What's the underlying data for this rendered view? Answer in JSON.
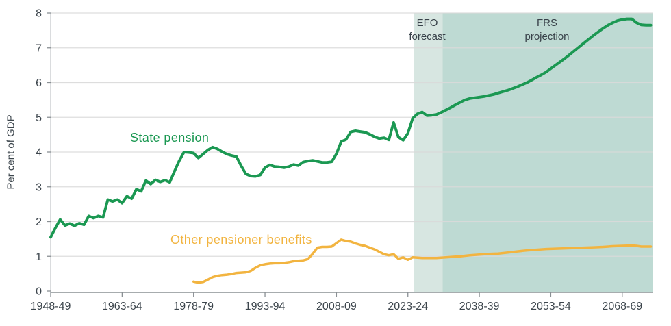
{
  "chart_data": {
    "type": "line",
    "title": "",
    "ylabel": "Per cent of GDP",
    "xlabel": "",
    "ylim": [
      0,
      8
    ],
    "y_ticks": [
      0,
      1,
      2,
      3,
      4,
      5,
      6,
      7,
      8
    ],
    "x_domain": [
      1948,
      2074.5
    ],
    "x_ticks": [
      {
        "year": 1948,
        "label": "1948-49"
      },
      {
        "year": 1963,
        "label": "1963-64"
      },
      {
        "year": 1978,
        "label": "1978-79"
      },
      {
        "year": 1993,
        "label": "1993-94"
      },
      {
        "year": 2008,
        "label": "2008-09"
      },
      {
        "year": 2023,
        "label": "2023-24"
      },
      {
        "year": 2038,
        "label": "2038-39"
      },
      {
        "year": 2053,
        "label": "2053-54"
      },
      {
        "year": 2068,
        "label": "2068-69"
      }
    ],
    "grid": true,
    "legend_position": "inline-labels",
    "bands": [
      {
        "name": "efo-forecast-band",
        "from": 2024.3,
        "to": 2030.3,
        "color": "#d7e6e1",
        "label_line1": "EFO",
        "label_line2": "forecast"
      },
      {
        "name": "frs-projection-band",
        "from": 2030.3,
        "to": 2074.5,
        "color": "#bedad3",
        "label_line1": "FRS",
        "label_line2": "projection"
      }
    ],
    "series": [
      {
        "name": "State pension",
        "color": "#1b9852",
        "points": [
          [
            1948,
            1.55
          ],
          [
            1949,
            1.82
          ],
          [
            1950,
            2.06
          ],
          [
            1951,
            1.89
          ],
          [
            1952,
            1.94
          ],
          [
            1953,
            1.88
          ],
          [
            1954,
            1.95
          ],
          [
            1955,
            1.91
          ],
          [
            1956,
            2.16
          ],
          [
            1957,
            2.1
          ],
          [
            1958,
            2.16
          ],
          [
            1959,
            2.12
          ],
          [
            1960,
            2.63
          ],
          [
            1961,
            2.58
          ],
          [
            1962,
            2.63
          ],
          [
            1963,
            2.53
          ],
          [
            1964,
            2.73
          ],
          [
            1965,
            2.66
          ],
          [
            1966,
            2.93
          ],
          [
            1967,
            2.87
          ],
          [
            1968,
            3.18
          ],
          [
            1969,
            3.08
          ],
          [
            1970,
            3.2
          ],
          [
            1971,
            3.14
          ],
          [
            1972,
            3.19
          ],
          [
            1973,
            3.13
          ],
          [
            1974,
            3.45
          ],
          [
            1975,
            3.75
          ],
          [
            1976,
            4.0
          ],
          [
            1977,
            3.99
          ],
          [
            1978,
            3.97
          ],
          [
            1979,
            3.83
          ],
          [
            1980,
            3.94
          ],
          [
            1981,
            4.06
          ],
          [
            1982,
            4.14
          ],
          [
            1983,
            4.09
          ],
          [
            1984,
            4.01
          ],
          [
            1985,
            3.94
          ],
          [
            1986,
            3.9
          ],
          [
            1987,
            3.87
          ],
          [
            1988,
            3.6
          ],
          [
            1989,
            3.37
          ],
          [
            1990,
            3.31
          ],
          [
            1991,
            3.3
          ],
          [
            1992,
            3.34
          ],
          [
            1993,
            3.55
          ],
          [
            1994,
            3.63
          ],
          [
            1995,
            3.58
          ],
          [
            1996,
            3.57
          ],
          [
            1997,
            3.55
          ],
          [
            1998,
            3.58
          ],
          [
            1999,
            3.64
          ],
          [
            2000,
            3.61
          ],
          [
            2001,
            3.71
          ],
          [
            2002,
            3.74
          ],
          [
            2003,
            3.76
          ],
          [
            2004,
            3.73
          ],
          [
            2005,
            3.7
          ],
          [
            2006,
            3.7
          ],
          [
            2007,
            3.72
          ],
          [
            2008,
            3.95
          ],
          [
            2009,
            4.3
          ],
          [
            2010,
            4.36
          ],
          [
            2011,
            4.58
          ],
          [
            2012,
            4.61
          ],
          [
            2013,
            4.59
          ],
          [
            2014,
            4.57
          ],
          [
            2015,
            4.51
          ],
          [
            2016,
            4.44
          ],
          [
            2017,
            4.39
          ],
          [
            2018,
            4.41
          ],
          [
            2019,
            4.35
          ],
          [
            2020,
            4.85
          ],
          [
            2021,
            4.43
          ],
          [
            2022,
            4.34
          ],
          [
            2023,
            4.54
          ],
          [
            2024,
            4.97
          ],
          [
            2025,
            5.1
          ],
          [
            2026,
            5.15
          ],
          [
            2027,
            5.05
          ],
          [
            2028,
            5.06
          ],
          [
            2029,
            5.08
          ],
          [
            2030,
            5.14
          ],
          [
            2031,
            5.21
          ],
          [
            2032,
            5.28
          ],
          [
            2033,
            5.36
          ],
          [
            2034,
            5.43
          ],
          [
            2035,
            5.5
          ],
          [
            2036,
            5.54
          ],
          [
            2037,
            5.56
          ],
          [
            2038,
            5.58
          ],
          [
            2039,
            5.6
          ],
          [
            2040,
            5.63
          ],
          [
            2041,
            5.66
          ],
          [
            2042,
            5.7
          ],
          [
            2043,
            5.74
          ],
          [
            2044,
            5.78
          ],
          [
            2045,
            5.83
          ],
          [
            2046,
            5.88
          ],
          [
            2047,
            5.94
          ],
          [
            2048,
            6.0
          ],
          [
            2049,
            6.07
          ],
          [
            2050,
            6.15
          ],
          [
            2051,
            6.22
          ],
          [
            2052,
            6.3
          ],
          [
            2053,
            6.4
          ],
          [
            2054,
            6.5
          ],
          [
            2055,
            6.6
          ],
          [
            2056,
            6.7
          ],
          [
            2057,
            6.81
          ],
          [
            2058,
            6.92
          ],
          [
            2059,
            7.03
          ],
          [
            2060,
            7.14
          ],
          [
            2061,
            7.25
          ],
          [
            2062,
            7.36
          ],
          [
            2063,
            7.46
          ],
          [
            2064,
            7.56
          ],
          [
            2065,
            7.65
          ],
          [
            2066,
            7.72
          ],
          [
            2067,
            7.78
          ],
          [
            2068,
            7.81
          ],
          [
            2069,
            7.83
          ],
          [
            2070,
            7.83
          ],
          [
            2071,
            7.72
          ],
          [
            2072,
            7.66
          ],
          [
            2073,
            7.65
          ],
          [
            2074,
            7.65
          ]
        ]
      },
      {
        "name": "Other pensioner benefits",
        "color": "#f2b440",
        "points": [
          [
            1978,
            0.27
          ],
          [
            1979,
            0.24
          ],
          [
            1980,
            0.26
          ],
          [
            1981,
            0.33
          ],
          [
            1982,
            0.4
          ],
          [
            1983,
            0.44
          ],
          [
            1984,
            0.46
          ],
          [
            1985,
            0.47
          ],
          [
            1986,
            0.49
          ],
          [
            1987,
            0.52
          ],
          [
            1988,
            0.53
          ],
          [
            1989,
            0.54
          ],
          [
            1990,
            0.58
          ],
          [
            1991,
            0.67
          ],
          [
            1992,
            0.74
          ],
          [
            1993,
            0.77
          ],
          [
            1994,
            0.79
          ],
          [
            1995,
            0.8
          ],
          [
            1996,
            0.8
          ],
          [
            1997,
            0.81
          ],
          [
            1998,
            0.83
          ],
          [
            1999,
            0.86
          ],
          [
            2000,
            0.87
          ],
          [
            2001,
            0.88
          ],
          [
            2002,
            0.92
          ],
          [
            2003,
            1.07
          ],
          [
            2004,
            1.25
          ],
          [
            2005,
            1.27
          ],
          [
            2006,
            1.27
          ],
          [
            2007,
            1.28
          ],
          [
            2008,
            1.38
          ],
          [
            2009,
            1.48
          ],
          [
            2010,
            1.44
          ],
          [
            2011,
            1.42
          ],
          [
            2012,
            1.37
          ],
          [
            2013,
            1.33
          ],
          [
            2014,
            1.3
          ],
          [
            2015,
            1.25
          ],
          [
            2016,
            1.2
          ],
          [
            2017,
            1.13
          ],
          [
            2018,
            1.06
          ],
          [
            2019,
            1.03
          ],
          [
            2020,
            1.06
          ],
          [
            2021,
            0.93
          ],
          [
            2022,
            0.97
          ],
          [
            2023,
            0.9
          ],
          [
            2024,
            0.97
          ],
          [
            2025,
            0.96
          ],
          [
            2026,
            0.95
          ],
          [
            2027,
            0.95
          ],
          [
            2028,
            0.95
          ],
          [
            2029,
            0.95
          ],
          [
            2030,
            0.96
          ],
          [
            2032,
            0.98
          ],
          [
            2034,
            1.0
          ],
          [
            2036,
            1.03
          ],
          [
            2038,
            1.05
          ],
          [
            2040,
            1.07
          ],
          [
            2042,
            1.08
          ],
          [
            2044,
            1.11
          ],
          [
            2046,
            1.14
          ],
          [
            2048,
            1.17
          ],
          [
            2050,
            1.19
          ],
          [
            2052,
            1.21
          ],
          [
            2054,
            1.22
          ],
          [
            2056,
            1.23
          ],
          [
            2058,
            1.24
          ],
          [
            2060,
            1.25
          ],
          [
            2062,
            1.26
          ],
          [
            2064,
            1.27
          ],
          [
            2066,
            1.29
          ],
          [
            2068,
            1.3
          ],
          [
            2070,
            1.31
          ],
          [
            2071,
            1.3
          ],
          [
            2072,
            1.28
          ],
          [
            2074,
            1.28
          ]
        ]
      }
    ],
    "colors": {
      "grid": "#d9d9d9",
      "axis": "#8a9094",
      "tick_text": "#3d464d"
    }
  },
  "labels": {
    "y_axis_title": "Per cent of GDP",
    "state_pension": "State pension",
    "other_benefits": "Other pensioner benefits",
    "efo_line1": "EFO",
    "efo_line2": "forecast",
    "frs_line1": "FRS",
    "frs_line2": "projection"
  }
}
